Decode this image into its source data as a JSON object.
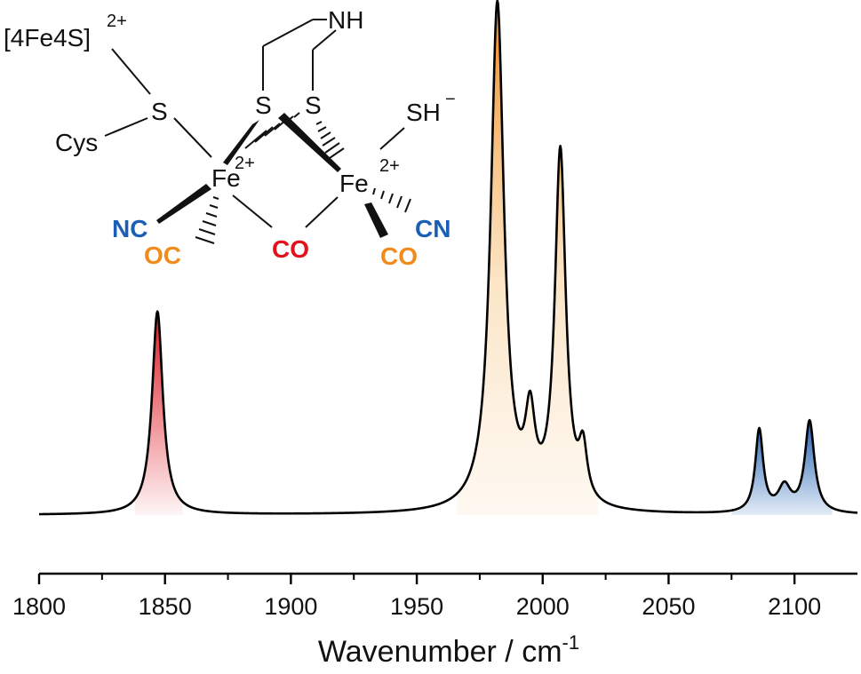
{
  "colors": {
    "spectrum_line": "#000000",
    "bridging_co": "#e3111b",
    "terminal_co": "#f18b1c",
    "cn": "#1b5fb4",
    "text": "#111111"
  },
  "chart_data": {
    "type": "line",
    "title": "",
    "xlabel": "Wavenumber / cm",
    "xlabel_superscript": "-1",
    "ylabel": "",
    "xlim": [
      1800,
      2125
    ],
    "x_ticks": [
      1800,
      1850,
      1900,
      1950,
      2000,
      2050,
      2100
    ],
    "y_axis_shown": false,
    "grid": false,
    "baseline": 0,
    "peaks": [
      {
        "position": 1847,
        "height": 0.4,
        "width": 2.6,
        "band": "bridging CO"
      },
      {
        "position": 1982,
        "height": 1.0,
        "width": 3.2,
        "band": "terminal CO"
      },
      {
        "position": 1995,
        "height": 0.155,
        "width": 2.3,
        "band": "terminal CO"
      },
      {
        "position": 2007,
        "height": 0.7,
        "width": 2.6,
        "band": "terminal CO"
      },
      {
        "position": 2016,
        "height": 0.1,
        "width": 2.0,
        "band": "terminal CO"
      },
      {
        "position": 2086,
        "height": 0.163,
        "width": 1.9,
        "band": "CN"
      },
      {
        "position": 2096,
        "height": 0.05,
        "width": 3.0,
        "band": "CN"
      },
      {
        "position": 2106,
        "height": 0.18,
        "width": 2.3,
        "band": "CN"
      }
    ],
    "shaded_regions": [
      {
        "name": "bridging CO",
        "x_range": [
          1838,
          1857
        ],
        "color": "#e3111b"
      },
      {
        "name": "terminal CO",
        "x_range": [
          1966,
          2022
        ],
        "color": "#f18b1c"
      },
      {
        "name": "CN",
        "x_range": [
          2075,
          2115
        ],
        "color": "#1b5fb4"
      }
    ],
    "inset_structure": {
      "labels": {
        "cluster": "[4Fe4S]",
        "cluster_charge": "2+",
        "nh": "NH",
        "s_left": "S",
        "s_mid": "S",
        "s_right": "S",
        "cys": "Cys",
        "sh": "SH",
        "sh_charge": "−",
        "fe_left": "Fe",
        "fe_left_charge": "2+",
        "fe_right": "Fe",
        "fe_right_charge": "2+",
        "nc_left": "NC",
        "oc_left": "OC",
        "co_bridge": "CO",
        "co_right": "CO",
        "cn_right": "CN"
      }
    }
  }
}
